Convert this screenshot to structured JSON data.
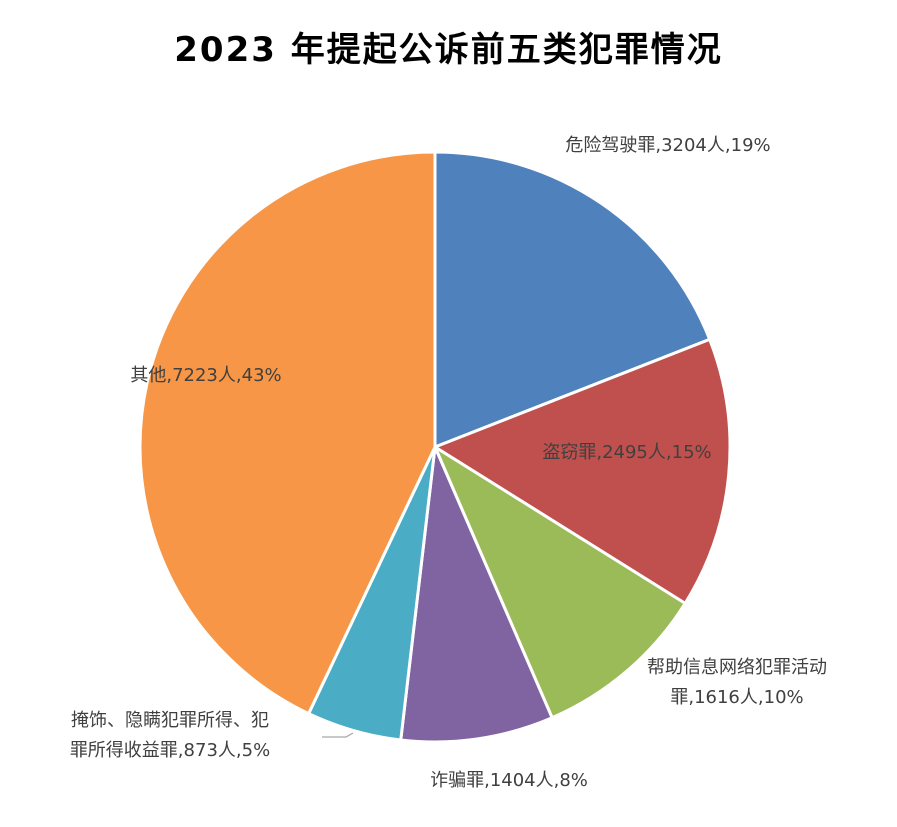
{
  "chart_data": {
    "type": "pie",
    "title": "2023 年提起公诉前五类犯罪情况",
    "unit": "人",
    "legend": "none",
    "slices": [
      {
        "name": "危险驾驶罪",
        "value": 3204,
        "percent": "19%",
        "color": "#4F81BD",
        "label_lines": [
          "危险驾驶罪,3204人,19%"
        ]
      },
      {
        "name": "盗窃罪",
        "value": 2495,
        "percent": "15%",
        "color": "#C0504D",
        "label_lines": [
          "盗窃罪,2495人,15%"
        ]
      },
      {
        "name": "帮助信息网络犯罪活动罪",
        "value": 1616,
        "percent": "10%",
        "color": "#9BBB59",
        "label_lines": [
          "帮助信息网络犯罪活动",
          "罪,1616人,10%"
        ]
      },
      {
        "name": "诈骗罪",
        "value": 1404,
        "percent": "8%",
        "color": "#8064A2",
        "label_lines": [
          "诈骗罪,1404人,8%"
        ]
      },
      {
        "name": "掩饰、隐瞒犯罪所得、犯罪所得收益罪",
        "value": 873,
        "percent": "5%",
        "color": "#4BACC6",
        "label_lines": [
          "掩饰、隐瞒犯罪所得、犯",
          "罪所得收益罪,873人,5%"
        ]
      },
      {
        "name": "其他",
        "value": 7223,
        "percent": "43%",
        "color": "#F79646",
        "label_lines": [
          "其他,7223人,43%"
        ]
      }
    ]
  }
}
